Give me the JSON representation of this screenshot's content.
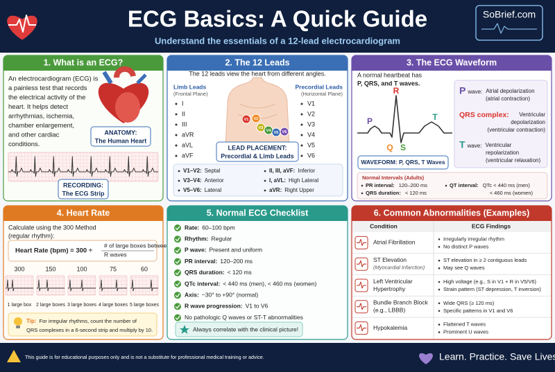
{
  "header": {
    "title": "ECG Basics: A Quick Guide",
    "subtitle": "Understand the essentials of a 12-lead electrocardiogram",
    "logo": "SoBrief.com"
  },
  "what_is": {
    "title": "1. What is an ECG?",
    "text": [
      "An electrocardiogram (ECG) is",
      "a painless test that records",
      "the electrical activity of the",
      "heart. It helps detect",
      "arrhythmias, ischemia,",
      "chamber enlargement,",
      "and other cardiac",
      "conditions."
    ],
    "anatomy_label": "ANATOMY:",
    "anatomy_caption": "The Human Heart",
    "recording_label": "RECORDING:",
    "recording_caption": "The ECG Strip"
  },
  "leads": {
    "title": "2. The 12 Leads",
    "intro": "The 12 leads view the heart from different angles.",
    "limb_title": "Limb Leads",
    "limb_subtitle": "(Frontal Plane)",
    "limb": [
      "I",
      "II",
      "III",
      "aVR",
      "aVL",
      "aVF"
    ],
    "precordial_title": "Precordial Leads",
    "precordial_subtitle": "(Horizontal Plane)",
    "precordial": [
      "V1",
      "V2",
      "V3",
      "V4",
      "V5",
      "V6"
    ],
    "placement_label": "LEAD PLACEMENT:",
    "placement_caption": "Precordial & Limb Leads",
    "groups": [
      {
        "leads": "V1–V2:",
        "view": "Septal"
      },
      {
        "leads": "V3–V4:",
        "view": "Anterior"
      },
      {
        "leads": "V5–V6:",
        "view": "Lateral"
      },
      {
        "leads": "II, III, aVF:",
        "view": "Inferior"
      },
      {
        "leads": "I, aVL:",
        "view": "High Lateral"
      },
      {
        "leads": "aVR:",
        "view": "Right Upper"
      }
    ]
  },
  "waveform": {
    "title": "3. The ECG Waveform",
    "intro": "A normal heartbeat has",
    "intro_bold": "P, QRS, and T waves.",
    "wave_labels": [
      "P",
      "R",
      "Q",
      "S",
      "T"
    ],
    "waves": [
      {
        "name": "P",
        "label": "wave:",
        "desc": [
          "Atrial depolarization",
          "(atrial contraction)"
        ]
      },
      {
        "name": "QRS complex:",
        "desc": [
          "Ventricular",
          "depolarization",
          "(ventricular contraction)"
        ]
      },
      {
        "name": "T",
        "label": "wave:",
        "desc": [
          "Ventricular",
          "repolarization",
          "(ventricular relaxation)"
        ]
      }
    ],
    "caption": "WAVEFORM: P, QRS, T Waves",
    "intervals_title": "Normal Intervals (Adults)",
    "intervals": [
      {
        "name": "PR interval:",
        "value": [
          "120–200 ms"
        ]
      },
      {
        "name": "QRS duration:",
        "value": [
          "< 120 ms"
        ]
      },
      {
        "name": "QT interval:",
        "value": [
          "QTc < 440 ms (men)",
          "< 460 ms (women)"
        ]
      }
    ]
  },
  "heart_rate": {
    "title": "4. Heart Rate",
    "intro": [
      "Calculate using the 300 Method",
      "(regular rhythm):"
    ],
    "formula_left": "Heart Rate (bpm) = 300 ÷",
    "formula_right": [
      "# of large boxes between",
      "R waves"
    ],
    "rates": [
      300,
      150,
      100,
      75,
      60
    ],
    "boxes": [
      "1 large box",
      "2 large boxes",
      "3 large boxes",
      "4 large boxes",
      "5 large boxes"
    ],
    "tip_label": "Tip:",
    "tip": [
      "For irregular rhythms, count the number of",
      "QRS complexes in a 6-second strip and multiply by 10."
    ]
  },
  "checklist": {
    "title": "5. Normal ECG Checklist",
    "items": [
      {
        "label": "Rate:",
        "value": "60–100 bpm"
      },
      {
        "label": "Rhythm:",
        "value": "Regular"
      },
      {
        "label": "P wave:",
        "value": "Present and uniform"
      },
      {
        "label": "PR interval:",
        "value": "120–200 ms"
      },
      {
        "label": "QRS duration:",
        "value": "< 120 ms"
      },
      {
        "label": "QTc interval:",
        "value": "< 440 ms (men), < 460 ms (women)"
      },
      {
        "label": "Axis:",
        "value": "−30° to +90° (normal)"
      },
      {
        "label": "R wave progression:",
        "value": "V1 to V6"
      },
      {
        "value": "No pathologic Q waves or ST-T abnormalities"
      }
    ],
    "note": "Always correlate with the clinical picture!"
  },
  "abnormalities": {
    "title": "6. Common Abnormalities (Examples)",
    "columns": [
      "Condition",
      "ECG Findings"
    ],
    "rows": [
      {
        "condition": [
          "Atrial Fibrillation"
        ],
        "findings": [
          "Irregularly irregular rhythm",
          "No distinct P waves"
        ]
      },
      {
        "condition": [
          "ST Elevation"
        ],
        "note": "(Myocardial Infarction)",
        "findings": [
          "ST elevation in ≥ 2 contiguous leads",
          "May see Q waves"
        ]
      },
      {
        "condition": [
          "Left Ventricular",
          "Hypertrophy"
        ],
        "findings": [
          "High voltage (e.g., S in V1 + R in V5/V6)",
          "Strain pattern (ST depression, T inversion)"
        ]
      },
      {
        "condition": [
          "Bundle Branch Block",
          "(e.g., LBBB)"
        ],
        "findings": [
          "Wide QRS (≥ 120 ms)",
          "Specific patterns in V1 and V6"
        ]
      },
      {
        "condition": [
          "Hypokalemia"
        ],
        "findings": [
          "Flattened T waves",
          "Prominent U waves"
        ]
      }
    ]
  },
  "footer": {
    "disclaimer": "This guide is for educational purposes only and is not a substitute for professional medical training or advice.",
    "slogan": "Learn. Practice. Save Lives."
  }
}
